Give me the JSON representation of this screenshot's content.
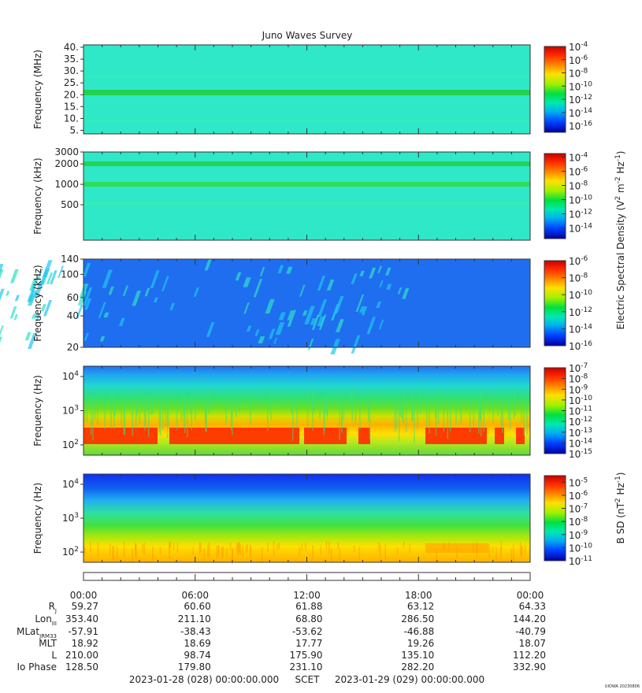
{
  "title": "Juno Waves Survey",
  "chart_data": {
    "type": "heatmap",
    "time_axis": {
      "ticks": [
        "00:00",
        "06:00",
        "12:00",
        "18:00",
        "00:00"
      ]
    },
    "panels": [
      {
        "ylabel": "Frequency (MHz)",
        "yticks": [
          "5.",
          "10.",
          "15.",
          "20.",
          "25.",
          "30.",
          "35.",
          "40."
        ],
        "yrange": [
          3.5,
          41
        ],
        "ylog": false,
        "colorbar": {
          "ticks": [
            "10^-4",
            "10^-6",
            "10^-8",
            "10^-10",
            "10^-12",
            "10^-14",
            "10^-16"
          ],
          "range": [
            -4,
            -17
          ]
        },
        "background": "#2ee8c8"
      },
      {
        "ylabel": "Frequency (kHz)",
        "yticks": [
          "500",
          "1000",
          "2000",
          "3000"
        ],
        "yrange": [
          150,
          3000
        ],
        "ylog": true,
        "colorbar": {
          "ticks": [
            "10^-4",
            "10^-6",
            "10^-8",
            "10^-10",
            "10^-12",
            "10^-14"
          ],
          "range": [
            -3.5,
            -15.5
          ]
        },
        "background": "#2ee8c8"
      },
      {
        "ylabel": "Frequency (kHz)",
        "yticks": [
          "20",
          "40",
          "60",
          "100",
          "140"
        ],
        "yrange": [
          20,
          140
        ],
        "ylog": true,
        "colorbar": {
          "ticks": [
            "10^-6",
            "10^-8",
            "10^-10",
            "10^-12",
            "10^-14",
            "10^-16"
          ],
          "range": [
            -6,
            -16
          ]
        },
        "background": "#1f6ef0"
      },
      {
        "ylabel": "Frequency (Hz)",
        "yticks": [
          "10^2",
          "10^3",
          "10^4"
        ],
        "yrange": [
          50,
          20000
        ],
        "ylog": true,
        "colorbar": {
          "ticks": [
            "10^-7",
            "10^-8",
            "10^-9",
            "10^-10",
            "10^-11",
            "10^-12",
            "10^-13",
            "10^-14",
            "10^-15"
          ],
          "range": [
            -7,
            -15
          ]
        },
        "background": "#1aa0f0"
      },
      {
        "ylabel": "Frequency (Hz)",
        "yticks": [
          "10^2",
          "10^3",
          "10^4"
        ],
        "yrange": [
          50,
          20000
        ],
        "ylog": true,
        "colorbar": {
          "ticks": [
            "10^-5",
            "10^-6",
            "10^-7",
            "10^-8",
            "10^-9",
            "10^-10",
            "10^-11"
          ],
          "range": [
            -4.5,
            -11
          ]
        },
        "background": "#28c8d8"
      }
    ],
    "colorbar_labels": {
      "electric": "Electric Spectral Density (V^2 m^-2 Hz^-1)",
      "magnetic": "B SD (nT^2 Hz^-1)"
    },
    "ephemeris": {
      "labels": [
        {
          "main": "R",
          "sub": "J"
        },
        {
          "main": "Lon",
          "sub": "III"
        },
        {
          "main": "MLat",
          "sub": "JRM33"
        },
        {
          "main": "MLT",
          "sub": ""
        },
        {
          "main": "L",
          "sub": ""
        },
        {
          "main": "Io Phase",
          "sub": ""
        }
      ],
      "rows": [
        [
          "59.27",
          "60.60",
          "61.88",
          "63.12",
          "64.33"
        ],
        [
          "353.40",
          "211.10",
          "68.80",
          "286.50",
          "144.20"
        ],
        [
          "-57.91",
          "-38.43",
          "-53.62",
          "-46.88",
          "-40.79"
        ],
        [
          "18.92",
          "18.69",
          "17.77",
          "19.26",
          "18.07"
        ],
        [
          "210.00",
          "98.74",
          "175.90",
          "135.10",
          "112.20"
        ],
        [
          "128.50",
          "179.80",
          "231.10",
          "282.20",
          "332.90"
        ]
      ]
    },
    "footer": {
      "start": "2023-01-28 (028) 00:00:00.000",
      "mid": "SCET",
      "end": "2023-01-29 (029) 00:00:00.000"
    },
    "stamp": "UIOWA 20230806"
  }
}
